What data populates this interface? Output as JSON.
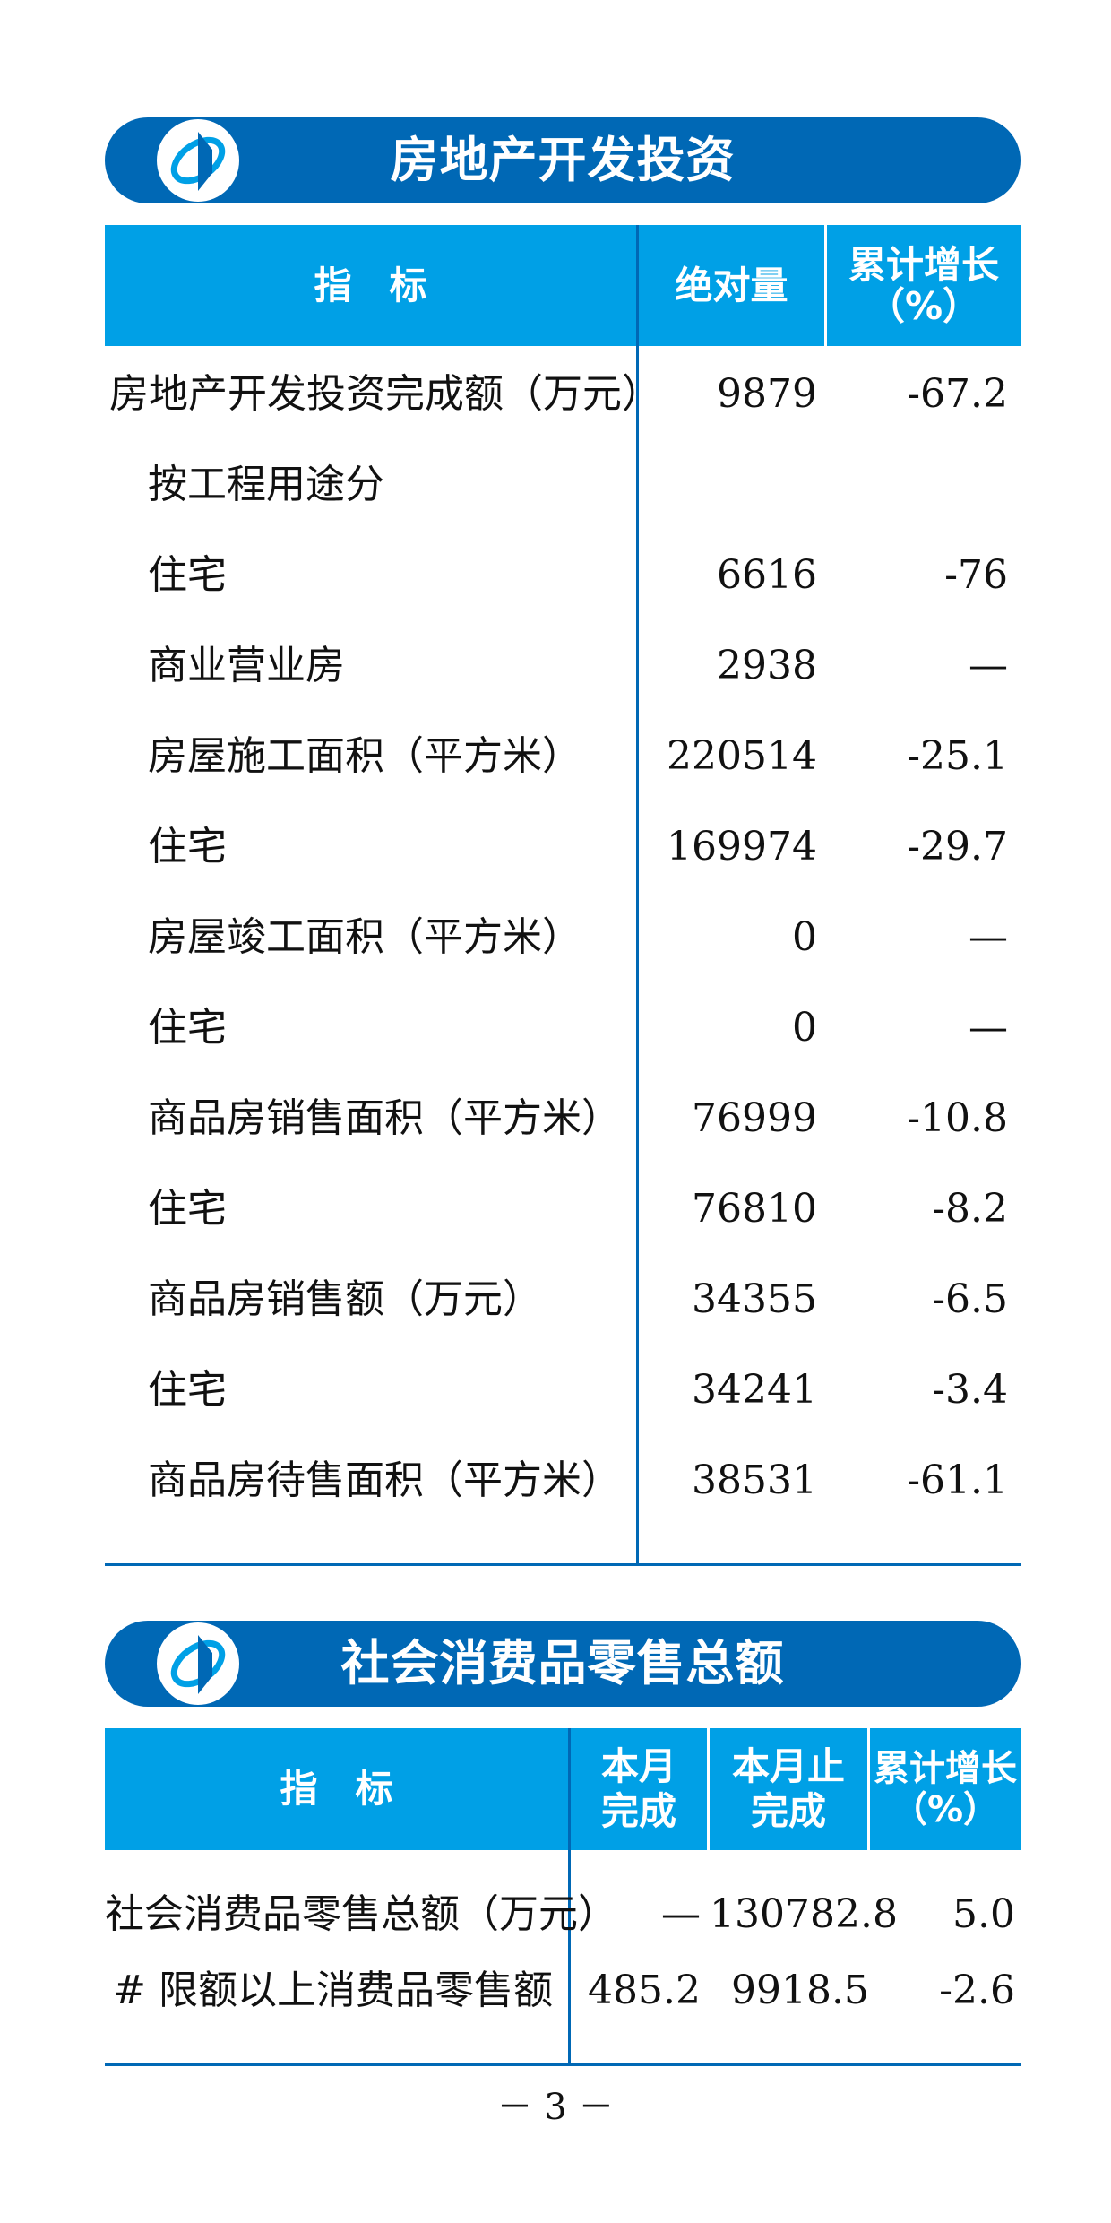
{
  "section1": {
    "title": "房地产开发投资",
    "logo_icon": "nbs-logo",
    "headers": [
      "指　标",
      "绝对量",
      "累计增长\n（%）"
    ],
    "rows": [
      {
        "label": "房地产开发投资完成额（万元）",
        "indent": false,
        "value": "9879",
        "growth": "-67.2"
      },
      {
        "label": "按工程用途分",
        "indent": true,
        "value": "",
        "growth": ""
      },
      {
        "label": "住宅",
        "indent": true,
        "value": "6616",
        "growth": "-76"
      },
      {
        "label": "商业营业房",
        "indent": true,
        "value": "2938",
        "growth": "—"
      },
      {
        "label": "房屋施工面积（平方米）",
        "indent": true,
        "value": "220514",
        "growth": "-25.1"
      },
      {
        "label": "住宅",
        "indent": true,
        "value": "169974",
        "growth": "-29.7"
      },
      {
        "label": "房屋竣工面积（平方米）",
        "indent": true,
        "value": "0",
        "growth": "—"
      },
      {
        "label": "住宅",
        "indent": true,
        "value": "0",
        "growth": "—"
      },
      {
        "label": "商品房销售面积（平方米）",
        "indent": true,
        "value": "76999",
        "growth": "-10.8"
      },
      {
        "label": "住宅",
        "indent": true,
        "value": "76810",
        "growth": "-8.2"
      },
      {
        "label": "商品房销售额（万元）",
        "indent": true,
        "value": "34355",
        "growth": "-6.5"
      },
      {
        "label": "住宅",
        "indent": true,
        "value": "34241",
        "growth": "-3.4"
      },
      {
        "label": "商品房待售面积（平方米）",
        "indent": true,
        "value": "38531",
        "growth": "-61.1"
      }
    ]
  },
  "section2": {
    "title": "社会消费品零售总额",
    "logo_icon": "nbs-logo",
    "headers": [
      "指　标",
      "本月\n完成",
      "本月止\n完成",
      "累计增长\n（%）"
    ],
    "rows": [
      {
        "label": "社会消费品零售总额（万元）",
        "month": "—",
        "ytd": "130782.8",
        "growth": "5.0"
      },
      {
        "label": "# 限额以上消费品零售额",
        "month": "485.2",
        "ytd": "9918.5",
        "growth": "-2.6"
      }
    ]
  },
  "page_number": "－ 3 －",
  "colors": {
    "banner": "#0068b5",
    "header": "#00a0e6",
    "rule": "#0068b5"
  }
}
